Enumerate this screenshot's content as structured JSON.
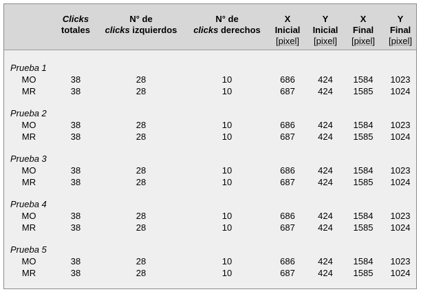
{
  "headers": [
    {
      "parts": [
        {
          "text": "Clicks",
          "italic": true
        },
        {
          "text": "totales",
          "italic": false
        }
      ],
      "unit": ""
    },
    {
      "parts": [
        {
          "text": "N° de",
          "italic": false
        },
        {
          "text": "clicks",
          "italic": true,
          "suffix": " izquierdos"
        }
      ],
      "unit": ""
    },
    {
      "parts": [
        {
          "text": "N° de",
          "italic": false
        },
        {
          "text": "clicks",
          "italic": true,
          "suffix": " derechos"
        }
      ],
      "unit": ""
    },
    {
      "parts": [
        {
          "text": "X",
          "italic": false
        },
        {
          "text": "Inicial",
          "italic": false
        }
      ],
      "unit": "[pixel]"
    },
    {
      "parts": [
        {
          "text": "Y",
          "italic": false
        },
        {
          "text": "Inicial",
          "italic": false
        }
      ],
      "unit": "[pixel]"
    },
    {
      "parts": [
        {
          "text": "X",
          "italic": false
        },
        {
          "text": "Final",
          "italic": false
        }
      ],
      "unit": "[pixel]"
    },
    {
      "parts": [
        {
          "text": "Y",
          "italic": false
        },
        {
          "text": "Final",
          "italic": false
        }
      ],
      "unit": "[pixel]"
    }
  ],
  "groups": [
    {
      "label": "Prueba 1",
      "rows": [
        {
          "name": "MO",
          "values": [
            "38",
            "28",
            "10",
            "686",
            "424",
            "1584",
            "1023"
          ]
        },
        {
          "name": "MR",
          "values": [
            "38",
            "28",
            "10",
            "687",
            "424",
            "1585",
            "1024"
          ]
        }
      ]
    },
    {
      "label": "Prueba 2",
      "rows": [
        {
          "name": "MO",
          "values": [
            "38",
            "28",
            "10",
            "686",
            "424",
            "1584",
            "1023"
          ]
        },
        {
          "name": "MR",
          "values": [
            "38",
            "28",
            "10",
            "687",
            "424",
            "1585",
            "1024"
          ]
        }
      ]
    },
    {
      "label": "Prueba 3",
      "rows": [
        {
          "name": "MO",
          "values": [
            "38",
            "28",
            "10",
            "686",
            "424",
            "1584",
            "1023"
          ]
        },
        {
          "name": "MR",
          "values": [
            "38",
            "28",
            "10",
            "687",
            "424",
            "1585",
            "1024"
          ]
        }
      ]
    },
    {
      "label": "Prueba 4",
      "rows": [
        {
          "name": "MO",
          "values": [
            "38",
            "28",
            "10",
            "686",
            "424",
            "1584",
            "1023"
          ]
        },
        {
          "name": "MR",
          "values": [
            "38",
            "28",
            "10",
            "687",
            "424",
            "1585",
            "1024"
          ]
        }
      ]
    },
    {
      "label": "Prueba 5",
      "rows": [
        {
          "name": "MO",
          "values": [
            "38",
            "28",
            "10",
            "686",
            "424",
            "1584",
            "1023"
          ]
        },
        {
          "name": "MR",
          "values": [
            "38",
            "28",
            "10",
            "687",
            "424",
            "1585",
            "1024"
          ]
        }
      ]
    }
  ]
}
